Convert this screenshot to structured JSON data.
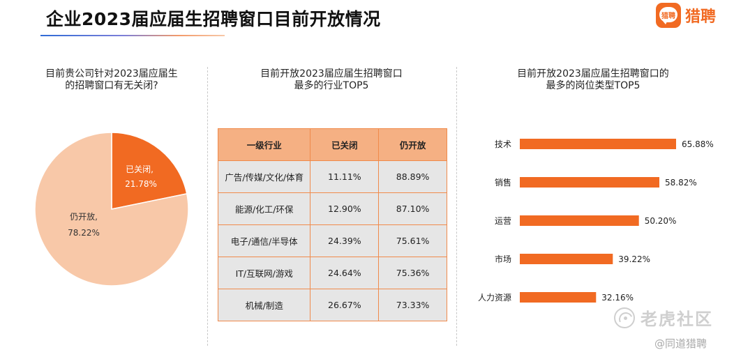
{
  "header": {
    "title": "企业2023届应届生招聘窗口目前开放情况",
    "brand_mark": "猎聘",
    "brand_name": "猎聘"
  },
  "colors": {
    "accent": "#f16a22",
    "light": "#f8c8a8",
    "table_header": "#f5b083",
    "table_cell": "#e6e6e6"
  },
  "chart_data": [
    {
      "type": "pie",
      "title": "目前贵公司针对2023届应届生的招聘窗口有无关闭?",
      "title_lines": [
        "目前贵公司针对2023届应届生",
        "的招聘窗口有无关闭?"
      ],
      "slices": [
        {
          "name": "已关闭",
          "value": 21.78,
          "label": "已关闭,",
          "value_label": "21.78%",
          "color": "#f16a22"
        },
        {
          "name": "仍开放",
          "value": 78.22,
          "label": "仍开放,",
          "value_label": "78.22%",
          "color": "#f8c8a8"
        }
      ]
    },
    {
      "type": "table",
      "title": "目前开放2023届应届生招聘窗口最多的行业TOP5",
      "title_lines": [
        "目前开放2023届应届生招聘窗口",
        "最多的行业TOP5"
      ],
      "columns": [
        "一级行业",
        "已关闭",
        "仍开放"
      ],
      "rows": [
        [
          "广告/传媒/文化/体育",
          "11.11%",
          "88.89%"
        ],
        [
          "能源/化工/环保",
          "12.90%",
          "87.10%"
        ],
        [
          "电子/通信/半导体",
          "24.39%",
          "75.61%"
        ],
        [
          "IT/互联网/游戏",
          "24.64%",
          "75.36%"
        ],
        [
          "机械/制造",
          "26.67%",
          "73.33%"
        ]
      ]
    },
    {
      "type": "bar",
      "orientation": "horizontal",
      "title": "目前开放2023届应届生招聘窗口的最多的岗位类型TOP5",
      "title_lines": [
        "目前开放2023届应届生招聘窗口的",
        "最多的岗位类型TOP5"
      ],
      "categories": [
        "技术",
        "销售",
        "运营",
        "市场",
        "人力资源"
      ],
      "values": [
        65.88,
        58.82,
        50.2,
        39.22,
        32.16
      ],
      "value_labels": [
        "65.88%",
        "58.82%",
        "50.20%",
        "39.22%",
        "32.16%"
      ],
      "xlim": [
        0,
        100
      ],
      "color": "#f16a22"
    }
  ],
  "watermark": {
    "text": "老虎社区",
    "source": "@同道猎聘"
  }
}
